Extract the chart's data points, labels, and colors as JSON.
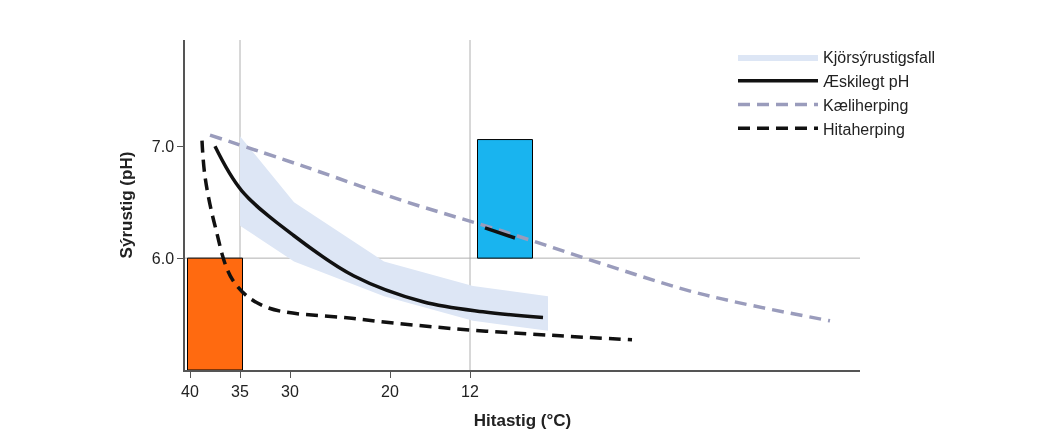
{
  "chart_data": {
    "type": "line",
    "xlabel": "Hitastig (°C)",
    "ylabel": "Sýrustig (pH)",
    "xlim": [
      40.5,
      -27
    ],
    "ylim": [
      5.0,
      7.95
    ],
    "xticks": [
      40,
      35,
      30,
      20,
      12
    ],
    "yticks": [
      {
        "value": 7.0,
        "label": "7.0"
      },
      {
        "value": 6.0,
        "label": "6.0"
      }
    ],
    "legend": "top right",
    "grid": false,
    "ref_lines": [
      {
        "axis": "x",
        "value": 35,
        "color": "#b0b0b0"
      },
      {
        "axis": "x",
        "value": 12,
        "color": "#b0b0b0"
      },
      {
        "axis": "y",
        "value": 6.0,
        "color": "#b0b0b0"
      }
    ],
    "series": [
      {
        "type": "area",
        "name": "Kjörsýrustigsfall",
        "color": "#dde6f5",
        "x": [
          35,
          29.6,
          20.6,
          11.7,
          4.2,
          4.2,
          11.7,
          20.6,
          29.6,
          35
        ],
        "values": [
          7.09,
          6.5,
          5.97,
          5.75,
          5.66,
          5.35,
          5.44,
          5.66,
          5.97,
          6.29
        ]
      },
      {
        "name": "Æskilegt pH",
        "color": "#111111",
        "line_style": "solid",
        "x": [
          37.5,
          34.8,
          29.6,
          23.6,
          16.7,
          10.7,
          4.7
        ],
        "values": [
          7.0,
          6.6,
          6.2,
          5.84,
          5.61,
          5.52,
          5.47
        ]
      },
      {
        "name": "Kæliherping",
        "color": "#9a9cbc",
        "line_style": "dashed",
        "x": [
          38,
          28.6,
          18.6,
          8.7,
          -1.2,
          -11.1,
          -24
        ],
        "values": [
          7.1,
          6.82,
          6.51,
          6.24,
          5.95,
          5.68,
          5.44
        ]
      },
      {
        "name": "Hitaherping",
        "color": "#111111",
        "line_style": "dashed",
        "x": [
          38.8,
          38.5,
          37.5,
          35.7,
          32.6,
          23.6,
          13.7,
          3.8,
          -4.2
        ],
        "values": [
          7.05,
          6.73,
          6.29,
          5.8,
          5.57,
          5.46,
          5.37,
          5.31,
          5.27
        ]
      },
      {
        "type": "bar",
        "color": "#ff6a10",
        "x": [
          37.5
        ],
        "base": [
          5.0
        ],
        "values": [
          1.0
        ]
      },
      {
        "type": "bar",
        "color": "#19b4ef",
        "x": [
          8.5
        ],
        "base": [
          6.0
        ],
        "values": [
          1.06
        ]
      },
      {
        "color": "#111111",
        "line_style": "solid",
        "x": [
          10.5,
          7.5
        ],
        "values": [
          6.27,
          6.18
        ]
      }
    ]
  }
}
